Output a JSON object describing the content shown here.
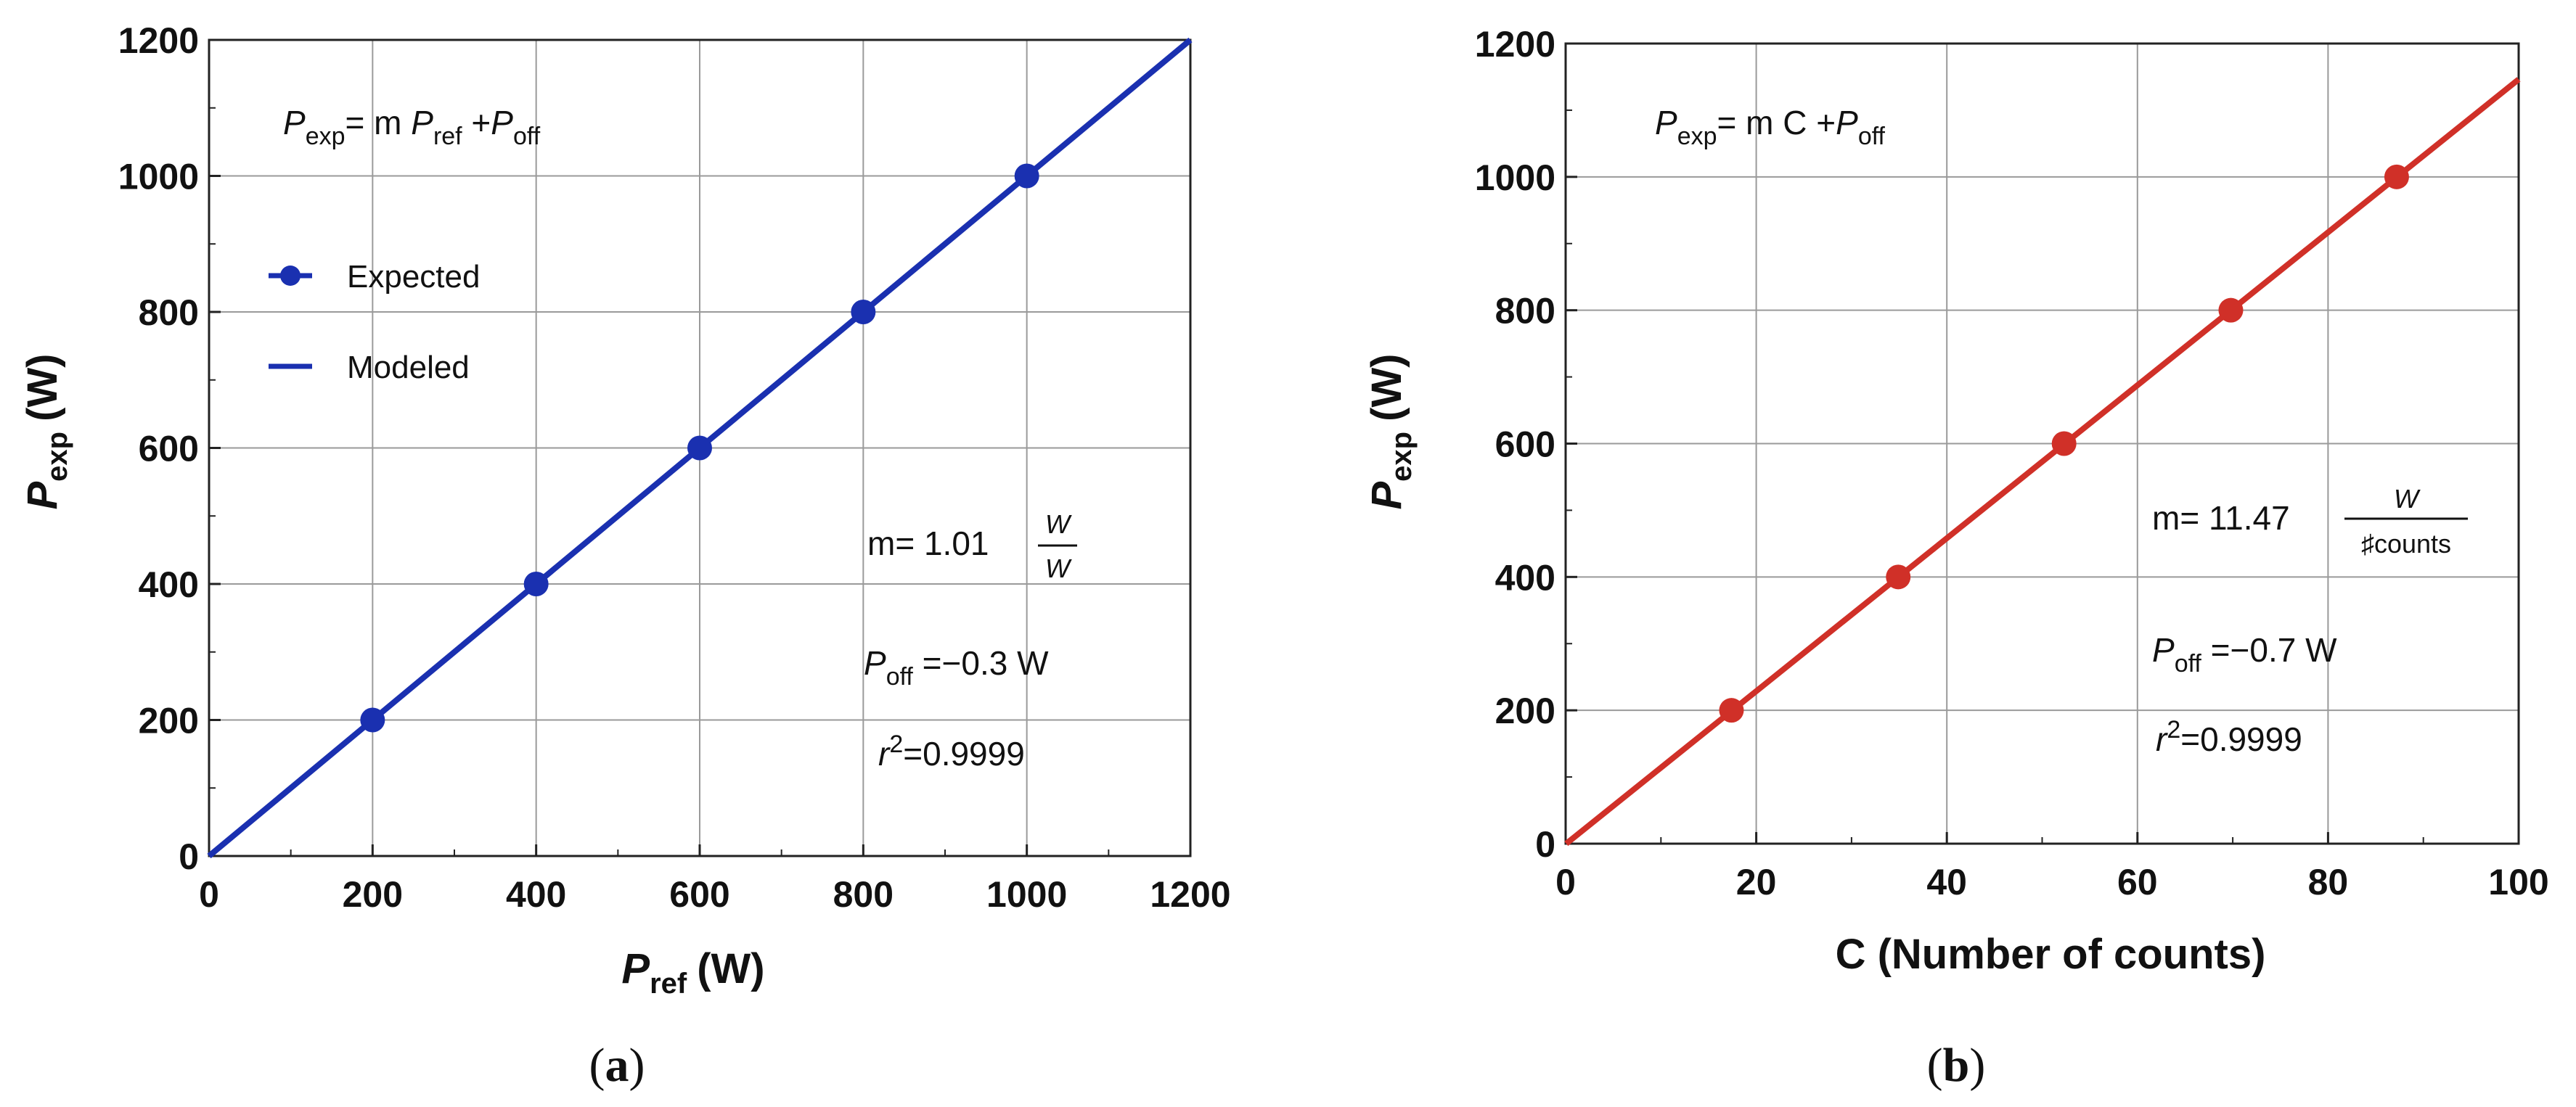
{
  "chart_data": [
    {
      "type": "line",
      "panel": "a",
      "caption_open": "(",
      "caption_letter": "a",
      "caption_close": ")",
      "xlabel_main": "P",
      "xlabel_sub": "ref",
      "xlabel_unit": "(W)",
      "ylabel_main": "P",
      "ylabel_sub": "exp",
      "ylabel_unit": "(W)",
      "xlim": [
        0,
        1200
      ],
      "ylim": [
        0,
        1200
      ],
      "xticks": [
        "0",
        "200",
        "400",
        "600",
        "800",
        "1000",
        "1200"
      ],
      "yticks": [
        "0",
        "200",
        "400",
        "600",
        "800",
        "1000",
        "1200"
      ],
      "grid": true,
      "color": "#1a30b0",
      "series": [
        {
          "name": "Expected",
          "kind": "points",
          "x": [
            200,
            400,
            600,
            800,
            1000
          ],
          "y": [
            200,
            400,
            600,
            800,
            1000
          ]
        },
        {
          "name": "Modeled",
          "kind": "line",
          "slope": 1.0,
          "intercept": 0
        }
      ],
      "legend": {
        "placement": "upper-left",
        "entries": [
          "Expected",
          "Modeled"
        ]
      },
      "annotations": {
        "eq_lhs": "P",
        "eq_lhs_sub": "exp",
        "eq_mid": "= m ",
        "eq_var": "P",
        "eq_var_sub": "ref",
        "eq_plus": " +",
        "eq_off": "P",
        "eq_off_sub": "off",
        "m_label": "m= 1.01",
        "m_num": "W",
        "m_den": "W",
        "poff_main": "P",
        "poff_sub": "off",
        "poff_val": " =−0.3 W",
        "r_main": "r",
        "r_sup": "2",
        "r_val": "=0.9999"
      }
    },
    {
      "type": "line",
      "panel": "b",
      "caption_open": "(",
      "caption_letter": "b",
      "caption_close": ")",
      "xlabel_main": "C (Number of counts)",
      "ylabel_main": "P",
      "ylabel_sub": "exp",
      "ylabel_unit": "(W)",
      "xlim": [
        0,
        100
      ],
      "ylim": [
        0,
        1200
      ],
      "xticks": [
        "0",
        "20",
        "40",
        "60",
        "80",
        "100"
      ],
      "yticks": [
        "0",
        "200",
        "400",
        "600",
        "800",
        "1000",
        "1200"
      ],
      "grid": true,
      "color": "#d03028",
      "series": [
        {
          "name": "Expected",
          "kind": "points",
          "x": [
            17.4,
            34.9,
            52.3,
            69.8,
            87.2
          ],
          "y": [
            200,
            400,
            600,
            800,
            1000
          ]
        },
        {
          "name": "Modeled",
          "kind": "line",
          "slope": 11.47,
          "intercept": -0.7
        }
      ],
      "annotations": {
        "eq_lhs": "P",
        "eq_lhs_sub": "exp",
        "eq_mid": "= m C +",
        "eq_off": "P",
        "eq_off_sub": "off",
        "m_label": "m= 11.47",
        "m_num": "W",
        "m_den": "♯counts",
        "poff_main": "P",
        "poff_sub": "off",
        "poff_val": " =−0.7 W",
        "r_main": "r",
        "r_sup": "2",
        "r_val": "=0.9999"
      }
    }
  ]
}
